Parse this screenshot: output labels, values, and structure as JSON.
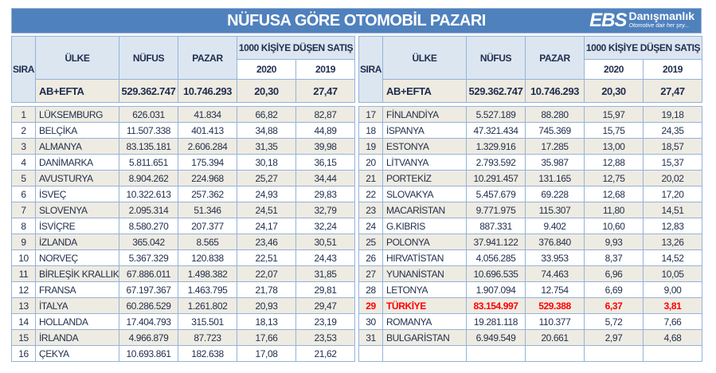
{
  "title": "NÜFUSA GÖRE OTOMOBİL PAZARI",
  "logo": {
    "mark": "EBS",
    "name": "Danışmanlık",
    "tagline": "Otomotive dair her şey..."
  },
  "headers": {
    "sira": "SIRA",
    "ulke": "ÜLKE",
    "nufus": "NÜFUS",
    "pazar": "PAZAR",
    "group": "1000 KİŞİYE DÜŞEN SATIŞ",
    "y2020": "2020",
    "y2019": "2019"
  },
  "total": {
    "ulke": "AB+EFTA",
    "nufus": "529.362.747",
    "pazar": "10.746.293",
    "v2020": "20,30",
    "v2019": "27,47"
  },
  "highlight_color": "#ff0000",
  "left_rows": [
    [
      "1",
      "LÜKSEMBURG",
      "626.031",
      "41.834",
      "66,82",
      "82,87"
    ],
    [
      "2",
      "BELÇİKA",
      "11.507.338",
      "401.413",
      "34,88",
      "44,89"
    ],
    [
      "3",
      "ALMANYA",
      "83.135.181",
      "2.606.284",
      "31,35",
      "39,98"
    ],
    [
      "4",
      "DANİMARKA",
      "5.811.651",
      "175.394",
      "30,18",
      "36,15"
    ],
    [
      "5",
      "AVUSTURYA",
      "8.904.262",
      "224.968",
      "25,27",
      "34,44"
    ],
    [
      "6",
      "İSVEÇ",
      "10.322.613",
      "257.362",
      "24,93",
      "29,83"
    ],
    [
      "7",
      "SLOVENYA",
      "2.095.314",
      "51.346",
      "24,51",
      "32,79"
    ],
    [
      "8",
      "İSVİÇRE",
      "8.580.270",
      "207.377",
      "24,17",
      "32,24"
    ],
    [
      "9",
      "İZLANDA",
      "365.042",
      "8.565",
      "23,46",
      "30,51"
    ],
    [
      "10",
      "NORVEÇ",
      "5.367.329",
      "120.838",
      "22,51",
      "24,43"
    ],
    [
      "11",
      "BİRLEŞİK KRALLIK",
      "67.886.011",
      "1.498.382",
      "22,07",
      "31,85"
    ],
    [
      "12",
      "FRANSA",
      "67.197.367",
      "1.463.795",
      "21,78",
      "29,81"
    ],
    [
      "13",
      "İTALYA",
      "60.286.529",
      "1.261.802",
      "20,93",
      "29,47"
    ],
    [
      "14",
      "HOLLANDA",
      "17.404.793",
      "315.501",
      "18,13",
      "23,19"
    ],
    [
      "15",
      "İRLANDA",
      "4.966.879",
      "87.723",
      "17,66",
      "23,53"
    ],
    [
      "16",
      "ÇEKYA",
      "10.693.861",
      "182.638",
      "17,08",
      "21,62"
    ]
  ],
  "right_rows": [
    [
      "17",
      "FİNLANDİYA",
      "5.527.189",
      "88.280",
      "15,97",
      "19,18"
    ],
    [
      "18",
      "İSPANYA",
      "47.321.434",
      "745.369",
      "15,75",
      "24,35"
    ],
    [
      "19",
      "ESTONYA",
      "1.329.916",
      "17.285",
      "13,00",
      "18,57"
    ],
    [
      "20",
      "LİTVANYA",
      "2.793.592",
      "35.987",
      "12,88",
      "15,37"
    ],
    [
      "21",
      "PORTEKİZ",
      "10.291.457",
      "131.165",
      "12,75",
      "20,02"
    ],
    [
      "22",
      "SLOVAKYA",
      "5.457.679",
      "69.228",
      "12,68",
      "17,20"
    ],
    [
      "23",
      "MACARİSTAN",
      "9.771.975",
      "115.307",
      "11,80",
      "14,51"
    ],
    [
      "24",
      "G.KIBRIS",
      "887.331",
      "9.402",
      "10,60",
      "12,83"
    ],
    [
      "25",
      "POLONYA",
      "37.941.122",
      "376.840",
      "9,93",
      "13,26"
    ],
    [
      "26",
      "HIRVATİSTAN",
      "4.056.285",
      "33.953",
      "8,37",
      "14,52"
    ],
    [
      "27",
      "YUNANİSTAN",
      "10.696.535",
      "74.463",
      "6,96",
      "10,05"
    ],
    [
      "28",
      "LETONYA",
      "1.907.094",
      "12.754",
      "6,69",
      "9,00"
    ],
    [
      "29",
      "TÜRKİYE",
      "83.154.997",
      "529.388",
      "6,37",
      "3,81"
    ],
    [
      "30",
      "ROMANYA",
      "19.281.118",
      "110.377",
      "5,72",
      "7,66"
    ],
    [
      "31",
      "BULGARİSTAN",
      "6.949.549",
      "20.661",
      "2,97",
      "4,68"
    ],
    [
      "",
      "",
      "",
      "",
      "",
      ""
    ]
  ]
}
